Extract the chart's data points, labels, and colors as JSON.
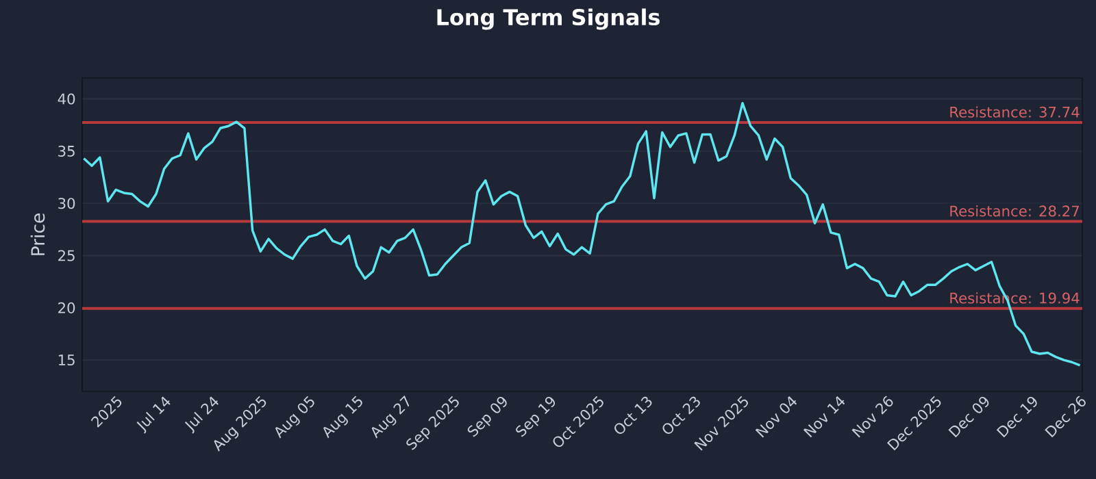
{
  "chart_data": {
    "type": "line",
    "title": "Long Term Signals",
    "ylabel": "Price",
    "categories": [
      null,
      null,
      null,
      null,
      "2025",
      null,
      null,
      null,
      null,
      null,
      "Jul 14",
      null,
      null,
      null,
      null,
      null,
      "Jul 24",
      null,
      null,
      null,
      null,
      null,
      "Aug 2025",
      null,
      null,
      null,
      null,
      null,
      "Aug 05",
      null,
      null,
      null,
      null,
      null,
      "Aug 15",
      null,
      null,
      null,
      null,
      null,
      "Aug 27",
      null,
      null,
      null,
      null,
      null,
      "Sep 2025",
      null,
      null,
      null,
      null,
      null,
      "Sep 09",
      null,
      null,
      null,
      null,
      null,
      "Sep 19",
      null,
      null,
      null,
      null,
      null,
      "Oct 2025",
      null,
      null,
      null,
      null,
      null,
      "Oct 13",
      null,
      null,
      null,
      null,
      null,
      "Oct 23",
      null,
      null,
      null,
      null,
      null,
      "Nov 2025",
      null,
      null,
      null,
      null,
      null,
      "Nov 04",
      null,
      null,
      null,
      null,
      null,
      "Nov 14",
      null,
      null,
      null,
      null,
      null,
      "Nov 26",
      null,
      null,
      null,
      null,
      null,
      "Dec 2025",
      null,
      null,
      null,
      null,
      null,
      "Dec 09",
      null,
      null,
      null,
      null,
      null,
      "Dec 19",
      null,
      null,
      null,
      null,
      null,
      "Dec 26"
    ],
    "series": [
      {
        "color": "#5ee6f0",
        "values": [
          34.3,
          33.6,
          34.4,
          30.2,
          31.3,
          31.0,
          30.9,
          30.2,
          29.7,
          30.9,
          33.3,
          34.3,
          34.6,
          36.7,
          34.2,
          35.3,
          35.9,
          37.2,
          37.4,
          37.8,
          37.2,
          27.4,
          25.4,
          26.6,
          25.7,
          25.1,
          24.7,
          25.9,
          26.8,
          27.0,
          27.5,
          26.4,
          26.1,
          26.9,
          24.0,
          22.8,
          23.5,
          25.8,
          25.3,
          26.4,
          26.7,
          27.5,
          25.5,
          23.1,
          23.2,
          24.2,
          25.0,
          25.8,
          26.2,
          31.1,
          32.2,
          29.9,
          30.7,
          31.1,
          30.7,
          27.9,
          26.7,
          27.3,
          25.9,
          27.1,
          25.6,
          25.1,
          25.8,
          25.2,
          29.0,
          29.9,
          30.2,
          31.6,
          32.6,
          35.7,
          36.9,
          30.5,
          36.8,
          35.4,
          36.5,
          36.7,
          33.9,
          36.6,
          36.6,
          34.1,
          34.5,
          36.5,
          39.6,
          37.4,
          36.5,
          34.2,
          36.2,
          35.4,
          32.4,
          31.7,
          30.8,
          28.1,
          29.9,
          27.2,
          27.0,
          23.8,
          24.2,
          23.8,
          22.8,
          22.5,
          21.2,
          21.1,
          22.5,
          21.2,
          21.6,
          22.2,
          22.2,
          22.8,
          23.5,
          23.9,
          24.2,
          23.6,
          24.0,
          24.4,
          22.1,
          20.7,
          18.3,
          17.5,
          15.8,
          15.6,
          15.7,
          15.3,
          15.0,
          14.8,
          14.5
        ]
      }
    ],
    "ylim": [
      12,
      42
    ],
    "yticks": [
      15,
      20,
      25,
      30,
      35,
      40
    ],
    "grid": "y",
    "marker": "none",
    "line_style": "solid",
    "ref_lines": [
      {
        "axis": "y",
        "value": 37.74,
        "label": "Resistance: 37.74",
        "color": "#b8393d"
      },
      {
        "axis": "y",
        "value": 28.27,
        "label": "Resistance: 28.27",
        "color": "#b8393d"
      },
      {
        "axis": "y",
        "value": 19.94,
        "label": "Resistance: 19.94",
        "color": "#b8393d"
      }
    ]
  }
}
